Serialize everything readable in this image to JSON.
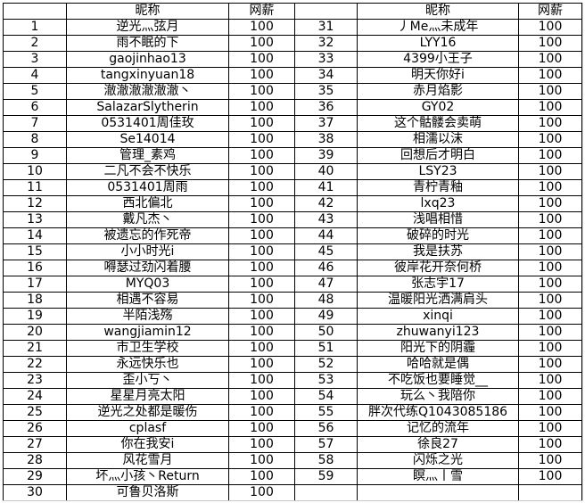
{
  "table": {
    "headers": [
      "",
      "昵称",
      "网薪",
      "",
      "昵称",
      "网薪"
    ],
    "rows": [
      {
        "n1": "1",
        "name1": "逆光灬弦月",
        "pay1": "100",
        "n2": "31",
        "name2": "丿Me灬未成年",
        "pay2": "100"
      },
      {
        "n1": "2",
        "name1": "雨不眠的下",
        "pay1": "100",
        "n2": "32",
        "name2": "LYY16",
        "pay2": "100"
      },
      {
        "n1": "3",
        "name1": "gaojinhao13",
        "pay1": "100",
        "n2": "33",
        "name2": "4399小王子",
        "pay2": "100"
      },
      {
        "n1": "4",
        "name1": "tangxinyuan18",
        "pay1": "100",
        "n2": "34",
        "name2": "明天你好i",
        "pay2": "100"
      },
      {
        "n1": "5",
        "name1": "澈澈澈澈澈澈丶",
        "pay1": "100",
        "n2": "35",
        "name2": "赤月焰影",
        "pay2": "100"
      },
      {
        "n1": "6",
        "name1": "SalazarSlytherin",
        "pay1": "100",
        "n2": "36",
        "name2": "GY02",
        "pay2": "100"
      },
      {
        "n1": "7",
        "name1": "0531401周佳玫",
        "pay1": "100",
        "n2": "37",
        "name2": "这个骷髅会卖萌",
        "pay2": "100"
      },
      {
        "n1": "8",
        "name1": "Se14014",
        "pay1": "100",
        "n2": "38",
        "name2": "相濡以沫",
        "pay2": "100"
      },
      {
        "n1": "9",
        "name1": "管理_素鸡",
        "pay1": "100",
        "n2": "39",
        "name2": "回想后才明白",
        "pay2": "100"
      },
      {
        "n1": "10",
        "name1": "二凡不会不快乐",
        "pay1": "100",
        "n2": "40",
        "name2": "LSY23",
        "pay2": "100"
      },
      {
        "n1": "11",
        "name1": "0531401周雨",
        "pay1": "100",
        "n2": "41",
        "name2": "青柠青釉",
        "pay2": "100"
      },
      {
        "n1": "12",
        "name1": "西北偏北",
        "pay1": "100",
        "n2": "42",
        "name2": "lxq23",
        "pay2": "100"
      },
      {
        "n1": "13",
        "name1": "戴凡杰丶",
        "pay1": "100",
        "n2": "43",
        "name2": "浅唱相惜",
        "pay2": "100"
      },
      {
        "n1": "14",
        "name1": "被遗忘的作死帝",
        "pay1": "100",
        "n2": "44",
        "name2": "破碎的时光",
        "pay2": "100"
      },
      {
        "n1": "15",
        "name1": "小小时光i",
        "pay1": "100",
        "n2": "45",
        "name2": "我是扶苏",
        "pay2": "100"
      },
      {
        "n1": "16",
        "name1": "嘚瑟过劲闪着腰",
        "pay1": "100",
        "n2": "46",
        "name2": "彼岸花开奈何桥",
        "pay2": "100"
      },
      {
        "n1": "17",
        "name1": "MYQ03",
        "pay1": "100",
        "n2": "47",
        "name2": "张志宇17",
        "pay2": "100"
      },
      {
        "n1": "18",
        "name1": "相遇不容易",
        "pay1": "100",
        "n2": "48",
        "name2": "温暖阳光洒满肩头",
        "pay2": "100"
      },
      {
        "n1": "19",
        "name1": "半陌浅殇",
        "pay1": "100",
        "n2": "49",
        "name2": "xinqi",
        "pay2": "100"
      },
      {
        "n1": "20",
        "name1": "wangjiamin12",
        "pay1": "100",
        "n2": "50",
        "name2": "zhuwanyi123",
        "pay2": "100"
      },
      {
        "n1": "21",
        "name1": "市卫生学校",
        "pay1": "100",
        "n2": "51",
        "name2": "阳光下的阴霾",
        "pay2": "100"
      },
      {
        "n1": "22",
        "name1": "永远快乐也",
        "pay1": "100",
        "n2": "52",
        "name2": "哈哈就是偶",
        "pay2": "100"
      },
      {
        "n1": "23",
        "name1": "歪小丂丶",
        "pay1": "100",
        "n2": "53",
        "name2": "不吃饭也要睡觉__",
        "pay2": "100"
      },
      {
        "n1": "24",
        "name1": "星星月亮太阳",
        "pay1": "100",
        "n2": "54",
        "name2": "玩么丶我陪你",
        "pay2": "100"
      },
      {
        "n1": "25",
        "name1": "逆光之处都是暖伤",
        "pay1": "100",
        "n2": "55",
        "name2": "胖次代练Q1043085186",
        "pay2": "100"
      },
      {
        "n1": "26",
        "name1": "cplasf",
        "pay1": "100",
        "n2": "56",
        "name2": "记忆的流年",
        "pay2": "100"
      },
      {
        "n1": "27",
        "name1": "你在我安i",
        "pay1": "100",
        "n2": "57",
        "name2": "徐良27",
        "pay2": "100"
      },
      {
        "n1": "28",
        "name1": "风花雪月",
        "pay1": "100",
        "n2": "58",
        "name2": "闪烁之光",
        "pay2": "100"
      },
      {
        "n1": "29",
        "name1": "坏灬小孩丶Return",
        "pay1": "100",
        "n2": "59",
        "name2": "瞑灬丨雪",
        "pay2": "100"
      },
      {
        "n1": "30",
        "name1": "可鲁贝洛斯",
        "pay1": "100",
        "n2": "",
        "name2": "",
        "pay2": ""
      }
    ]
  }
}
